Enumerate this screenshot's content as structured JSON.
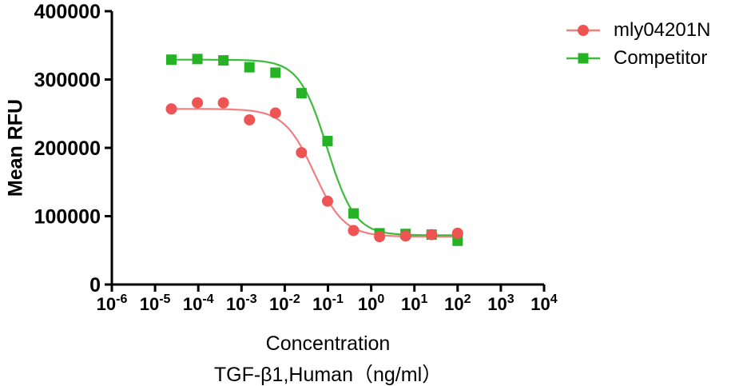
{
  "figure": {
    "background": "#ffffff"
  },
  "chart_data": {
    "type": "scatter",
    "subtype": "dose-response-curve-4PL",
    "title": "",
    "xlabel": "Concentration",
    "xlabel2": "TGF-β1,Human（ng/ml）",
    "ylabel": "Mean RFU",
    "grid": false,
    "legend_position": "top-right",
    "axis_color": "#000000",
    "x_axis": {
      "scale": "log10",
      "min_exp": -6,
      "max_exp": 4,
      "tick_base": "10",
      "tick_exponents": [
        -6,
        -5,
        -4,
        -3,
        -2,
        -1,
        0,
        1,
        2,
        3,
        4
      ]
    },
    "y_axis": {
      "min": 0,
      "max": 400000,
      "ticks": [
        0,
        100000,
        200000,
        300000,
        400000
      ],
      "tick_labels": [
        "0",
        "100000",
        "200000",
        "300000",
        "400000"
      ]
    },
    "series": [
      {
        "name": "mly04201N",
        "marker": "circle",
        "color": "#ee5454",
        "line_color": "#f08080",
        "x": [
          2.38e-05,
          9.54e-05,
          0.000381,
          0.001526,
          0.0061,
          0.0244,
          0.0977,
          0.391,
          1.5625,
          6.25,
          25,
          100
        ],
        "y": [
          257000,
          266000,
          266000,
          241000,
          251000,
          193000,
          122000,
          79000,
          70000,
          71000,
          73000,
          75000
        ],
        "fit": {
          "top": 257000,
          "bottom": 70000,
          "ec50": 0.048,
          "hill": 1.25
        }
      },
      {
        "name": "Competitor",
        "marker": "square",
        "color": "#25b325",
        "line_color": "#3cbb3c",
        "x": [
          2.38e-05,
          9.54e-05,
          0.000381,
          0.001526,
          0.0061,
          0.0244,
          0.0977,
          0.391,
          1.5625,
          6.25,
          25,
          100
        ],
        "y": [
          329000,
          330000,
          328000,
          318000,
          310000,
          280000,
          210000,
          104000,
          75000,
          74000,
          73000,
          64000
        ],
        "fit": {
          "top": 329000,
          "bottom": 72000,
          "ec50": 0.095,
          "hill": 1.35
        }
      }
    ]
  }
}
